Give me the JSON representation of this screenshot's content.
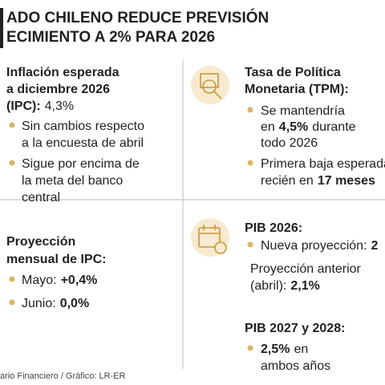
{
  "header": {
    "title": [
      "ADO CHILENO REDUCE PREVISIÓN",
      "ECIMIENTO A 2% PARA 2026"
    ]
  },
  "inflation": {
    "heading": [
      "Inflación esperada",
      "a diciembre 2026",
      "(IPC):"
    ],
    "heading_value": "4,3%",
    "bullets": [
      [
        "Sin cambios respecto",
        "a la encuesta de abril"
      ],
      [
        "Sigue por encima de",
        "la meta del banco",
        "central"
      ]
    ]
  },
  "tpm": {
    "heading": [
      "Tasa de Política",
      "Monetaria (TPM):"
    ],
    "bullet1": {
      "line1": "Se mantendría",
      "line2_pre": "en",
      "line2_value": "4,5%",
      "line2_post": "durante",
      "line3": "todo 2026"
    },
    "bullet2": {
      "line1": "Primera baja esperada",
      "line2_pre": "recién en",
      "line2_value": "17 meses"
    }
  },
  "monthly": {
    "heading": [
      "Proyección",
      "mensual de IPC:"
    ],
    "items": [
      {
        "label": "Mayo:",
        "value": "+0,4%"
      },
      {
        "label": "Junio:",
        "value": "0,0%"
      }
    ]
  },
  "gdp2026": {
    "heading": "PIB 2026:",
    "new_label": "Nueva proyección:",
    "new_value": "2",
    "previous_line1": "Proyección anterior",
    "previous_label": "(abril):",
    "previous_value": "2,1%"
  },
  "gdp2027": {
    "heading": "PIB 2027 y 2028:",
    "value": "2,5%",
    "line1_post": "en",
    "line2": "ambos años"
  },
  "footer": {
    "source": "ario Financiero / Gráfico: LR-ER"
  }
}
